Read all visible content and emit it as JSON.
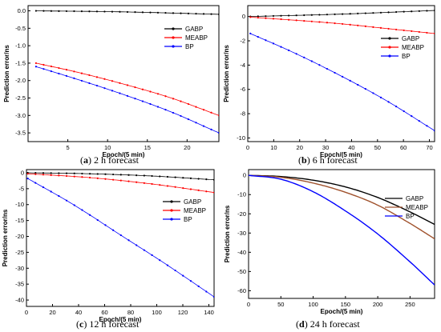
{
  "chart_data": [
    {
      "type": "line",
      "caption": {
        "letter": "a",
        "text": "2 h forecast"
      },
      "xlabel": "Epoch/(5 min)",
      "ylabel": "Prediction error/ns",
      "xlim": [
        0,
        24
      ],
      "ylim": [
        -3.75,
        0.15
      ],
      "xticks": [
        5,
        10,
        15,
        20
      ],
      "xtick_labels": [
        "5",
        "10",
        "15",
        "20"
      ],
      "yticks": [
        0,
        -0.5,
        -1,
        -1.5,
        -2,
        -2.5,
        -3,
        -3.5
      ],
      "ytick_labels": [
        "0.0",
        "-0.5",
        "-1.0",
        "-1.5",
        "-2.0",
        "-2.5",
        "-3.0",
        "-3.5"
      ],
      "legend": "top-right",
      "grid": false,
      "marker": "dot",
      "x_range": [
        1,
        24
      ],
      "series": [
        {
          "name": "GABP",
          "color": "#000000",
          "x": [
            1,
            12,
            24
          ],
          "values": [
            0.0,
            -0.03,
            -0.1
          ]
        },
        {
          "name": "MEABP",
          "color": "#ff0000",
          "x": [
            1,
            6,
            12,
            18,
            24
          ],
          "values": [
            -1.5,
            -1.75,
            -2.1,
            -2.5,
            -3.0
          ]
        },
        {
          "name": "BP",
          "color": "#0000ff",
          "x": [
            1,
            6,
            12,
            18,
            24
          ],
          "values": [
            -1.6,
            -1.95,
            -2.4,
            -2.9,
            -3.5
          ]
        }
      ]
    },
    {
      "type": "line",
      "caption": {
        "letter": "b",
        "text": "6 h forecast"
      },
      "xlabel": "Epoch/(5 min)",
      "ylabel": "Prediction error/ns",
      "xlim": [
        0,
        72
      ],
      "ylim": [
        -10.3,
        0.9
      ],
      "xticks": [
        0,
        10,
        20,
        30,
        40,
        50,
        60,
        70
      ],
      "xtick_labels": [
        "0",
        "10",
        "20",
        "30",
        "40",
        "50",
        "60",
        "70"
      ],
      "yticks": [
        0,
        -2,
        -4,
        -6,
        -8,
        -10
      ],
      "ytick_labels": [
        "0",
        "-2",
        "-4",
        "-6",
        "-8",
        "-10"
      ],
      "legend": "top-right",
      "grid": false,
      "marker": "dot",
      "x_range": [
        1,
        72
      ],
      "series": [
        {
          "name": "GABP",
          "color": "#000000",
          "x": [
            1,
            36,
            72
          ],
          "values": [
            0.0,
            0.2,
            0.5
          ]
        },
        {
          "name": "MEABP",
          "color": "#ff0000",
          "x": [
            1,
            18,
            36,
            54,
            72
          ],
          "values": [
            -0.05,
            -0.3,
            -0.6,
            -1.0,
            -1.4
          ]
        },
        {
          "name": "BP",
          "color": "#0000ff",
          "x": [
            1,
            18,
            36,
            54,
            72
          ],
          "values": [
            -1.4,
            -3.0,
            -4.9,
            -7.0,
            -9.4
          ]
        }
      ]
    },
    {
      "type": "line",
      "caption": {
        "letter": "c",
        "text": "12 h forecast"
      },
      "xlabel": "Epoch/(5 min)",
      "ylabel": "Prediction error/ns",
      "xlim": [
        0,
        144
      ],
      "ylim": [
        -42,
        1
      ],
      "xticks": [
        0,
        20,
        40,
        60,
        80,
        100,
        120,
        140
      ],
      "xtick_labels": [
        "0",
        "20",
        "40",
        "60",
        "80",
        "100",
        "120",
        "140"
      ],
      "yticks": [
        0,
        -5,
        -10,
        -15,
        -20,
        -25,
        -30,
        -35,
        -40
      ],
      "ytick_labels": [
        "0",
        "-5",
        "-10",
        "-15",
        "-20",
        "-25",
        "-30",
        "-35",
        "-40"
      ],
      "legend": "right",
      "grid": false,
      "marker": "dot",
      "x_range": [
        1,
        144
      ],
      "series": [
        {
          "name": "GABP",
          "color": "#000000",
          "x": [
            1,
            48,
            96,
            144
          ],
          "values": [
            0.0,
            -0.3,
            -1.0,
            -2.2
          ]
        },
        {
          "name": "MEABP",
          "color": "#ff0000",
          "x": [
            1,
            48,
            96,
            144
          ],
          "values": [
            -0.3,
            -1.5,
            -3.5,
            -6.2
          ]
        },
        {
          "name": "BP",
          "color": "#0000ff",
          "x": [
            1,
            36,
            72,
            108,
            144
          ],
          "values": [
            -1.8,
            -10.0,
            -19.5,
            -29.0,
            -39.0
          ]
        }
      ]
    },
    {
      "type": "line",
      "caption": {
        "letter": "d",
        "text": "24 h forecast"
      },
      "xlabel": "Epoch/(5 min)",
      "ylabel": "Prediction error/ns",
      "xlim": [
        0,
        288
      ],
      "ylim": [
        -64,
        3
      ],
      "xticks": [
        0,
        50,
        100,
        150,
        200,
        250
      ],
      "xtick_labels": [
        "0",
        "50",
        "100",
        "150",
        "200",
        "250"
      ],
      "yticks": [
        0,
        -10,
        -20,
        -30,
        -40,
        -50,
        -60
      ],
      "ytick_labels": [
        "0",
        "-10",
        "-20",
        "-30",
        "-40",
        "-50",
        "-60"
      ],
      "legend": "top-right",
      "grid": false,
      "marker": "none",
      "x_range": [
        0,
        288
      ],
      "series": [
        {
          "name": "GABP",
          "color": "#000000",
          "x": [
            0,
            50,
            100,
            150,
            200,
            250,
            288
          ],
          "values": [
            0,
            -0.6,
            -2.5,
            -6.0,
            -11.5,
            -19.0,
            -25.5
          ]
        },
        {
          "name": "MEABP",
          "color": "#a0522d",
          "x": [
            0,
            50,
            100,
            150,
            200,
            250,
            288
          ],
          "values": [
            0,
            -1.0,
            -4.0,
            -8.8,
            -15.5,
            -25.0,
            -33.0
          ]
        },
        {
          "name": "BP",
          "color": "#0000ff",
          "x": [
            0,
            50,
            100,
            150,
            200,
            250,
            288
          ],
          "values": [
            0,
            -2.0,
            -8.5,
            -18.5,
            -30.5,
            -45.0,
            -57.0
          ]
        }
      ]
    }
  ]
}
